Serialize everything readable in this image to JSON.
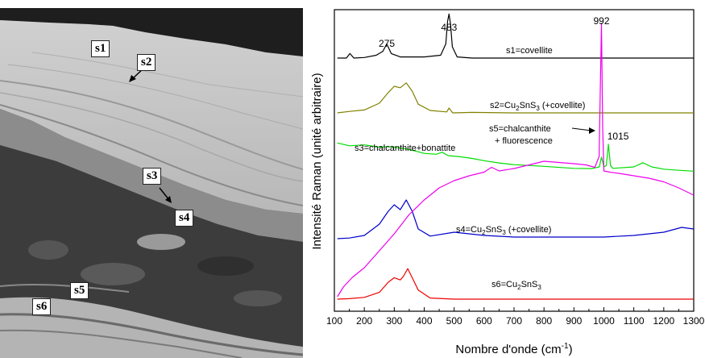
{
  "micrograph": {
    "labels": [
      "s1",
      "s2",
      "s3",
      "s4",
      "s5",
      "s6"
    ]
  },
  "chart_data": {
    "type": "line",
    "xlabel": "Nombre d'onde (cm-1)",
    "xlabel_prefix": "Nombre d'onde (cm",
    "xlabel_sup": "-1",
    "xlabel_suffix": ")",
    "ylabel": "Intensité Raman (unité arbitraire)",
    "xlim": [
      100,
      1300
    ],
    "xticks": [
      "100",
      "200",
      "300",
      "400",
      "500",
      "600",
      "700",
      "800",
      "900",
      "1000",
      "1100",
      "1200",
      "1300"
    ],
    "grid": false,
    "peak_labels": [
      "275",
      "483",
      "992",
      "1015"
    ],
    "annotations": {
      "s1": "s1=covellite",
      "s2_prefix": "s2=Cu",
      "s2_sub1": "2",
      "s2_mid": "SnS",
      "s2_sub2": "3",
      "s2_suffix": " (+covellite)",
      "s3": "s3=chalcanthite+bonattite",
      "s5_line1": "s5=chalcanthite",
      "s5_line2": "+ fluorescence",
      "s4_prefix": "s4=Cu",
      "s4_sub1": "2",
      "s4_mid": "SnS",
      "s4_sub2": "3",
      "s4_suffix": " (+covellite)",
      "s6_prefix": "s6=Cu",
      "s6_sub1": "2",
      "s6_mid": "SnS",
      "s6_sub2": "3"
    },
    "series": [
      {
        "name": "s1=covellite",
        "color": "#000000",
        "x": [
          110,
          140,
          152,
          165,
          200,
          240,
          262,
          275,
          290,
          320,
          400,
          455,
          472,
          478,
          483,
          488,
          494,
          510,
          560,
          700,
          900,
          1100,
          1300
        ],
        "y": [
          0.0,
          0.0,
          0.08,
          0.0,
          0.01,
          0.05,
          0.12,
          0.25,
          0.08,
          0.02,
          0.02,
          0.05,
          0.25,
          0.65,
          0.78,
          0.6,
          0.2,
          0.02,
          0.0,
          0.0,
          0.0,
          0.0,
          0.0
        ]
      },
      {
        "name": "s2=Cu2SnS3 (+covellite)",
        "color": "#808000",
        "x": [
          110,
          150,
          200,
          250,
          280,
          300,
          320,
          340,
          360,
          380,
          420,
          475,
          483,
          495,
          560,
          700,
          900,
          1100,
          1300
        ],
        "y": [
          0.0,
          0.03,
          0.06,
          0.2,
          0.42,
          0.55,
          0.52,
          0.62,
          0.45,
          0.18,
          0.05,
          0.02,
          0.1,
          0.0,
          0.01,
          0.0,
          0.0,
          0.0,
          0.0
        ]
      },
      {
        "name": "s3=chalcanthite+bonattite",
        "color": "#00dd00",
        "x": [
          110,
          150,
          200,
          250,
          280,
          300,
          350,
          400,
          440,
          460,
          480,
          520,
          560,
          600,
          650,
          700,
          800,
          900,
          960,
          985,
          992,
          1000,
          1008,
          1015,
          1022,
          1030,
          1100,
          1130,
          1160,
          1200,
          1250,
          1300
        ],
        "y": [
          0.85,
          0.75,
          0.78,
          0.7,
          0.72,
          0.7,
          0.62,
          0.48,
          0.45,
          0.52,
          0.4,
          0.36,
          0.3,
          0.22,
          0.14,
          0.08,
          0.02,
          -0.05,
          -0.06,
          0.0,
          0.35,
          0.0,
          0.05,
          0.8,
          0.05,
          -0.05,
          0.0,
          0.15,
          0.0,
          -0.08,
          -0.12,
          -0.15
        ]
      },
      {
        "name": "s4=Cu2SnS3 (+covellite)",
        "color": "#0000cc",
        "x": [
          110,
          150,
          200,
          250,
          280,
          300,
          320,
          340,
          360,
          380,
          420,
          500,
          600,
          700,
          800,
          900,
          1000,
          1100,
          1200,
          1260,
          1300
        ],
        "y": [
          0.0,
          0.02,
          0.1,
          0.45,
          0.85,
          1.05,
          0.9,
          1.2,
          0.85,
          0.3,
          0.08,
          0.2,
          0.1,
          0.05,
          0.05,
          0.05,
          0.05,
          0.1,
          0.2,
          0.35,
          0.3
        ]
      },
      {
        "name": "s5=chalcanthite + fluorescence",
        "color": "#ee00ee",
        "x": [
          110,
          130,
          160,
          200,
          250,
          300,
          350,
          400,
          450,
          500,
          550,
          600,
          625,
          650,
          700,
          750,
          800,
          850,
          900,
          940,
          970,
          984,
          988,
          992,
          996,
          1000,
          1020,
          1050,
          1100,
          1150,
          1200,
          1250,
          1300
        ],
        "y": [
          0.0,
          0.4,
          0.8,
          1.2,
          1.9,
          2.6,
          3.4,
          4.0,
          4.5,
          4.8,
          5.0,
          5.15,
          5.35,
          5.2,
          5.3,
          5.45,
          5.6,
          5.55,
          5.5,
          5.45,
          5.35,
          5.8,
          8.5,
          11.3,
          7.0,
          5.2,
          5.15,
          5.1,
          5.0,
          4.9,
          4.75,
          4.5,
          4.2
        ]
      },
      {
        "name": "s6=Cu2SnS3",
        "color": "#ee0000",
        "x": [
          110,
          150,
          200,
          250,
          280,
          300,
          320,
          330,
          345,
          360,
          380,
          420,
          500,
          700,
          900,
          1100,
          1300
        ],
        "y": [
          0.0,
          0.02,
          0.08,
          0.3,
          0.75,
          0.95,
          0.85,
          1.0,
          1.35,
          0.95,
          0.4,
          0.05,
          0.0,
          0.0,
          0.0,
          0.0,
          0.0
        ]
      }
    ]
  }
}
